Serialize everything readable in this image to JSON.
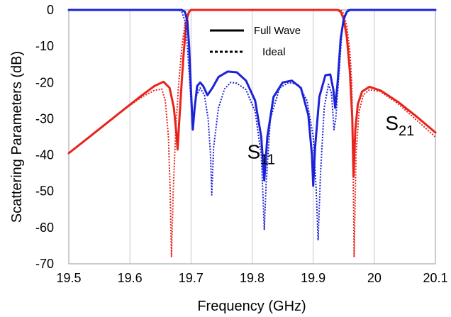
{
  "chart_data": {
    "type": "line",
    "title": "",
    "xlabel": "Frequency (GHz)",
    "ylabel": "Scattering Parameters (dB)",
    "xlim": [
      19.5,
      20.1
    ],
    "ylim": [
      -70,
      0
    ],
    "xticks": [
      "19.5",
      "19.6",
      "19.7",
      "19.8",
      "19.9",
      "20",
      "20.1"
    ],
    "yticks": [
      "0",
      "-10",
      "-20",
      "-30",
      "-40",
      "-50",
      "-60",
      "-70"
    ],
    "grid": {
      "vertical": true,
      "horizontal": false
    },
    "legend": {
      "position": "top-center",
      "entries": [
        {
          "label": "Full Wave",
          "style": "solid"
        },
        {
          "label": "Ideal",
          "style": "dotted"
        }
      ]
    },
    "annotations": [
      {
        "base": "S",
        "sub": "11",
        "x": 19.792,
        "y": -41
      },
      {
        "base": "S",
        "sub": "21",
        "x": 20.018,
        "y": -33
      }
    ],
    "series": [
      {
        "param": "S21",
        "style": "solid",
        "color": "#e8231c",
        "points": [
          [
            19.5,
            -39.5
          ],
          [
            19.53,
            -35.5
          ],
          [
            19.56,
            -31.5
          ],
          [
            19.59,
            -27.5
          ],
          [
            19.62,
            -23.5
          ],
          [
            19.64,
            -21.0
          ],
          [
            19.655,
            -19.8
          ],
          [
            19.665,
            -21.5
          ],
          [
            19.672,
            -27.0
          ],
          [
            19.676,
            -34.0
          ],
          [
            19.678,
            -38.5
          ],
          [
            19.681,
            -30.0
          ],
          [
            19.685,
            -19.5
          ],
          [
            19.688,
            -12.0
          ],
          [
            19.691,
            -6.0
          ],
          [
            19.694,
            -2.0
          ],
          [
            19.697,
            -0.5
          ],
          [
            19.7,
            0
          ],
          [
            19.94,
            0
          ],
          [
            19.945,
            -0.5
          ],
          [
            19.95,
            -2.5
          ],
          [
            19.955,
            -7.5
          ],
          [
            19.96,
            -17.0
          ],
          [
            19.964,
            -30.0
          ],
          [
            19.966,
            -46.0
          ],
          [
            19.969,
            -33.0
          ],
          [
            19.973,
            -26.0
          ],
          [
            19.98,
            -22.5
          ],
          [
            19.992,
            -21.2
          ],
          [
            20.01,
            -22.2
          ],
          [
            20.04,
            -25.5
          ],
          [
            20.07,
            -29.5
          ],
          [
            20.1,
            -33.8
          ]
        ]
      },
      {
        "param": "S21",
        "style": "dotted",
        "color": "#e8231c",
        "points": [
          [
            19.5,
            -39.5
          ],
          [
            19.53,
            -35.5
          ],
          [
            19.56,
            -31.5
          ],
          [
            19.59,
            -27.5
          ],
          [
            19.62,
            -24.0
          ],
          [
            19.64,
            -22.2
          ],
          [
            19.652,
            -21.8
          ],
          [
            19.658,
            -25.0
          ],
          [
            19.663,
            -35.0
          ],
          [
            19.666,
            -50.0
          ],
          [
            19.668,
            -68.0
          ],
          [
            19.671,
            -50.0
          ],
          [
            19.675,
            -33.0
          ],
          [
            19.68,
            -20.0
          ],
          [
            19.685,
            -10.5
          ],
          [
            19.69,
            -4.0
          ],
          [
            19.695,
            -1.0
          ],
          [
            19.7,
            0
          ],
          [
            19.945,
            0
          ],
          [
            19.95,
            -1.0
          ],
          [
            19.955,
            -4.5
          ],
          [
            19.96,
            -11.5
          ],
          [
            19.963,
            -20.0
          ],
          [
            19.965,
            -38.0
          ],
          [
            19.967,
            -68.0
          ],
          [
            19.97,
            -40.0
          ],
          [
            19.975,
            -28.0
          ],
          [
            19.982,
            -23.5
          ],
          [
            19.992,
            -22.0
          ],
          [
            20.01,
            -22.5
          ],
          [
            20.04,
            -26.0
          ],
          [
            20.07,
            -30.5
          ],
          [
            20.1,
            -35.0
          ]
        ]
      },
      {
        "param": "S11",
        "style": "solid",
        "color": "#1c22d8",
        "points": [
          [
            19.5,
            0
          ],
          [
            19.685,
            0
          ],
          [
            19.69,
            -0.5
          ],
          [
            19.694,
            -3.0
          ],
          [
            19.697,
            -10.0
          ],
          [
            19.7,
            -22.0
          ],
          [
            19.703,
            -33.0
          ],
          [
            19.706,
            -27.0
          ],
          [
            19.71,
            -21.0
          ],
          [
            19.715,
            -20.0
          ],
          [
            19.72,
            -21.0
          ],
          [
            19.727,
            -23.5
          ],
          [
            19.735,
            -21.5
          ],
          [
            19.745,
            -18.5
          ],
          [
            19.76,
            -17.0
          ],
          [
            19.775,
            -17.2
          ],
          [
            19.79,
            -19.5
          ],
          [
            19.805,
            -25.0
          ],
          [
            19.815,
            -35.0
          ],
          [
            19.82,
            -47.0
          ],
          [
            19.825,
            -35.0
          ],
          [
            19.835,
            -24.0
          ],
          [
            19.85,
            -20.0
          ],
          [
            19.865,
            -19.5
          ],
          [
            19.88,
            -21.5
          ],
          [
            19.892,
            -29.0
          ],
          [
            19.898,
            -40.0
          ],
          [
            19.9,
            -48.5
          ],
          [
            19.903,
            -38.0
          ],
          [
            19.91,
            -24.0
          ],
          [
            19.92,
            -18.0
          ],
          [
            19.928,
            -17.8
          ],
          [
            19.933,
            -22.0
          ],
          [
            19.936,
            -27.0
          ],
          [
            19.94,
            -20.0
          ],
          [
            19.945,
            -8.0
          ],
          [
            19.95,
            -2.5
          ],
          [
            19.955,
            -0.5
          ],
          [
            19.96,
            0
          ],
          [
            20.1,
            0
          ]
        ]
      },
      {
        "param": "S11",
        "style": "dotted",
        "color": "#1c22d8",
        "points": [
          [
            19.5,
            0
          ],
          [
            19.68,
            0
          ],
          [
            19.685,
            -0.5
          ],
          [
            19.69,
            -3.0
          ],
          [
            19.694,
            -10.0
          ],
          [
            19.698,
            -20.0
          ],
          [
            19.701,
            -28.0
          ],
          [
            19.704,
            -29.5
          ],
          [
            19.708,
            -24.0
          ],
          [
            19.715,
            -21.5
          ],
          [
            19.722,
            -23.5
          ],
          [
            19.728,
            -30.0
          ],
          [
            19.732,
            -40.0
          ],
          [
            19.734,
            -51.0
          ],
          [
            19.737,
            -38.0
          ],
          [
            19.745,
            -27.0
          ],
          [
            19.755,
            -21.8
          ],
          [
            19.765,
            -20.0
          ],
          [
            19.775,
            -20.2
          ],
          [
            19.79,
            -22.0
          ],
          [
            19.805,
            -28.0
          ],
          [
            19.815,
            -40.0
          ],
          [
            19.818,
            -52.0
          ],
          [
            19.82,
            -60.5
          ],
          [
            19.823,
            -48.0
          ],
          [
            19.83,
            -30.0
          ],
          [
            19.845,
            -21.5
          ],
          [
            19.86,
            -20.0
          ],
          [
            19.875,
            -20.5
          ],
          [
            19.89,
            -25.0
          ],
          [
            19.9,
            -35.0
          ],
          [
            19.905,
            -50.0
          ],
          [
            19.908,
            -63.5
          ],
          [
            19.912,
            -45.0
          ],
          [
            19.918,
            -27.0
          ],
          [
            19.925,
            -20.5
          ],
          [
            19.93,
            -23.0
          ],
          [
            19.934,
            -33.0
          ],
          [
            19.937,
            -30.0
          ],
          [
            19.942,
            -18.0
          ],
          [
            19.947,
            -6.0
          ],
          [
            19.952,
            -1.5
          ],
          [
            19.957,
            0
          ],
          [
            20.1,
            0
          ]
        ]
      }
    ]
  }
}
